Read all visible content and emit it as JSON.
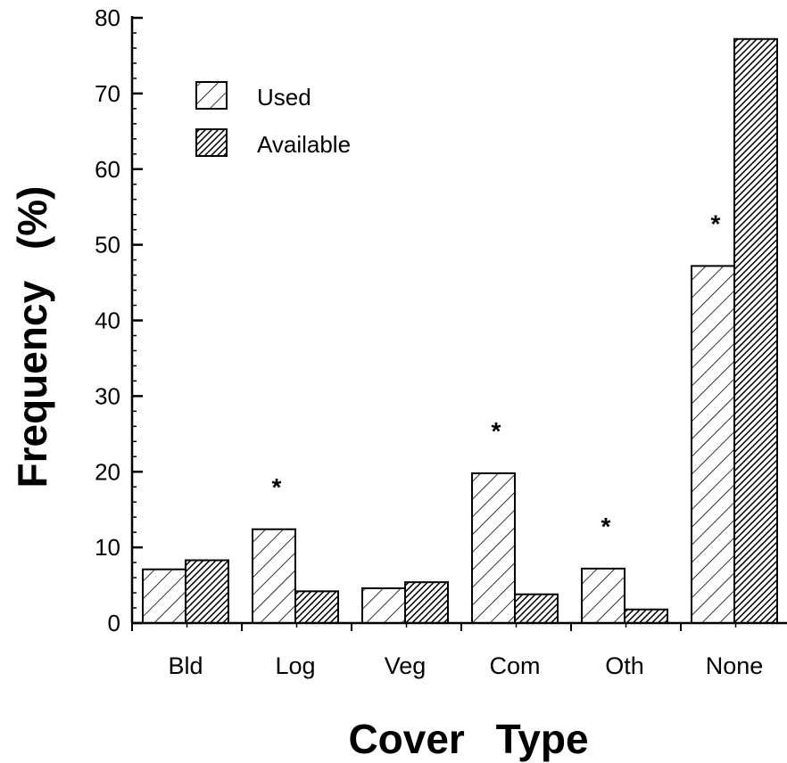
{
  "chart_data": {
    "type": "bar",
    "title": "",
    "xlabel": "Cover Type",
    "ylabel": "Frequency (%)",
    "ylim": [
      0,
      80
    ],
    "yticks": [
      0,
      10,
      20,
      30,
      40,
      50,
      60,
      70,
      80
    ],
    "categories": [
      "Bld",
      "Log",
      "Veg",
      "Com",
      "Oth",
      "None"
    ],
    "series": [
      {
        "name": "Used",
        "values": [
          7.1,
          12.4,
          4.6,
          19.8,
          7.2,
          47.2
        ],
        "pattern": "light-hatch"
      },
      {
        "name": "Available",
        "values": [
          8.3,
          4.2,
          5.4,
          3.8,
          1.8,
          77.2
        ],
        "pattern": "dense-hatch"
      }
    ],
    "significance_marker": "*",
    "significant_categories": [
      "Log",
      "Com",
      "Oth",
      "None"
    ],
    "legend_position": "top-left",
    "grid": false
  }
}
